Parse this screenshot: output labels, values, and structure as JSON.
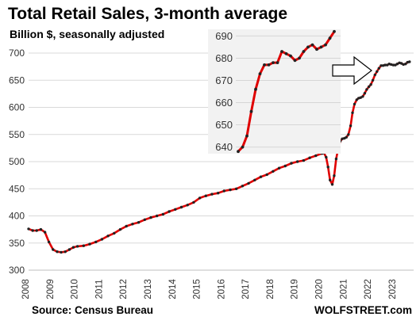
{
  "chart_data": [
    {
      "type": "line",
      "title": "Total Retail Sales, 3-month average",
      "subtitle": "Billion $, seasonally adjusted",
      "xlabel": "",
      "ylabel": "",
      "xlim": [
        2008,
        2023.75
      ],
      "ylim": [
        300,
        700
      ],
      "y_ticks": [
        300,
        350,
        400,
        450,
        500,
        550,
        600,
        650,
        700
      ],
      "x_ticks": [
        2008,
        2009,
        2010,
        2011,
        2012,
        2013,
        2014,
        2015,
        2016,
        2017,
        2018,
        2019,
        2020,
        2021,
        2022,
        2023
      ],
      "grid": "horizontal",
      "line_color": "#e00000",
      "marker_color": "#222222",
      "series": [
        {
          "values": [
            [
              2008.0,
              376
            ],
            [
              2008.17,
              373
            ],
            [
              2008.33,
              373
            ],
            [
              2008.5,
              375
            ],
            [
              2008.67,
              370
            ],
            [
              2008.83,
              352
            ],
            [
              2009.0,
              338
            ],
            [
              2009.17,
              334
            ],
            [
              2009.33,
              333
            ],
            [
              2009.5,
              334
            ],
            [
              2009.67,
              338
            ],
            [
              2009.83,
              342
            ],
            [
              2010.0,
              344
            ],
            [
              2010.25,
              345
            ],
            [
              2010.5,
              348
            ],
            [
              2010.75,
              352
            ],
            [
              2011.0,
              357
            ],
            [
              2011.25,
              363
            ],
            [
              2011.5,
              368
            ],
            [
              2011.75,
              375
            ],
            [
              2012.0,
              381
            ],
            [
              2012.25,
              385
            ],
            [
              2012.5,
              388
            ],
            [
              2012.75,
              393
            ],
            [
              2013.0,
              397
            ],
            [
              2013.25,
              400
            ],
            [
              2013.5,
              403
            ],
            [
              2013.75,
              408
            ],
            [
              2014.0,
              412
            ],
            [
              2014.25,
              416
            ],
            [
              2014.5,
              420
            ],
            [
              2014.75,
              425
            ],
            [
              2015.0,
              433
            ],
            [
              2015.25,
              437
            ],
            [
              2015.5,
              440
            ],
            [
              2015.75,
              442
            ],
            [
              2016.0,
              446
            ],
            [
              2016.25,
              448
            ],
            [
              2016.5,
              450
            ],
            [
              2016.75,
              455
            ],
            [
              2017.0,
              460
            ],
            [
              2017.25,
              466
            ],
            [
              2017.5,
              472
            ],
            [
              2017.75,
              476
            ],
            [
              2018.0,
              482
            ],
            [
              2018.25,
              488
            ],
            [
              2018.5,
              492
            ],
            [
              2018.75,
              497
            ],
            [
              2019.0,
              500
            ],
            [
              2019.25,
              502
            ],
            [
              2019.5,
              507
            ],
            [
              2019.75,
              511
            ],
            [
              2020.0,
              515
            ],
            [
              2020.08,
              516
            ],
            [
              2020.17,
              508
            ],
            [
              2020.25,
              490
            ],
            [
              2020.33,
              466
            ],
            [
              2020.42,
              458
            ],
            [
              2020.5,
              474
            ],
            [
              2020.58,
              505
            ],
            [
              2020.67,
              526
            ],
            [
              2020.75,
              538
            ],
            [
              2020.83,
              542
            ],
            [
              2020.92,
              543
            ],
            [
              2021.0,
              545
            ],
            [
              2021.08,
              550
            ],
            [
              2021.17,
              566
            ],
            [
              2021.25,
              590
            ],
            [
              2021.33,
              606
            ],
            [
              2021.42,
              614
            ],
            [
              2021.5,
              617
            ],
            [
              2021.58,
              618
            ],
            [
              2021.67,
              620
            ],
            [
              2021.75,
              626
            ],
            [
              2021.83,
              633
            ],
            [
              2021.92,
              638
            ],
            [
              2022.0,
              642
            ],
            [
              2022.08,
              650
            ],
            [
              2022.17,
              660
            ],
            [
              2022.25,
              666
            ],
            [
              2022.33,
              672
            ],
            [
              2022.42,
              677
            ],
            [
              2022.5,
              677
            ],
            [
              2022.58,
              678
            ],
            [
              2022.67,
              678
            ],
            [
              2022.75,
              680
            ],
            [
              2022.83,
              679
            ],
            [
              2022.92,
              678
            ],
            [
              2023.0,
              678
            ],
            [
              2023.08,
              680
            ],
            [
              2023.17,
              682
            ],
            [
              2023.25,
              681
            ],
            [
              2023.33,
              679
            ],
            [
              2023.42,
              680
            ],
            [
              2023.5,
              683
            ],
            [
              2023.58,
              684
            ]
          ]
        }
      ]
    },
    {
      "type": "line",
      "title": "",
      "ylim": [
        637,
        693
      ],
      "y_ticks": [
        640,
        650,
        660,
        670,
        680,
        690
      ],
      "x_ticks": [],
      "grid": "horizontal",
      "line_color": "#e00000",
      "marker_color": "#222222",
      "series": [
        {
          "values": [
            638,
            640,
            645,
            656,
            666,
            673,
            677,
            677,
            678,
            678,
            683,
            682,
            681,
            679,
            680,
            683,
            685,
            686,
            684,
            685,
            686,
            689,
            692
          ]
        }
      ]
    }
  ],
  "footer": {
    "source": "Source: Census Bureau",
    "brand": "WOLFSTREET.com"
  }
}
